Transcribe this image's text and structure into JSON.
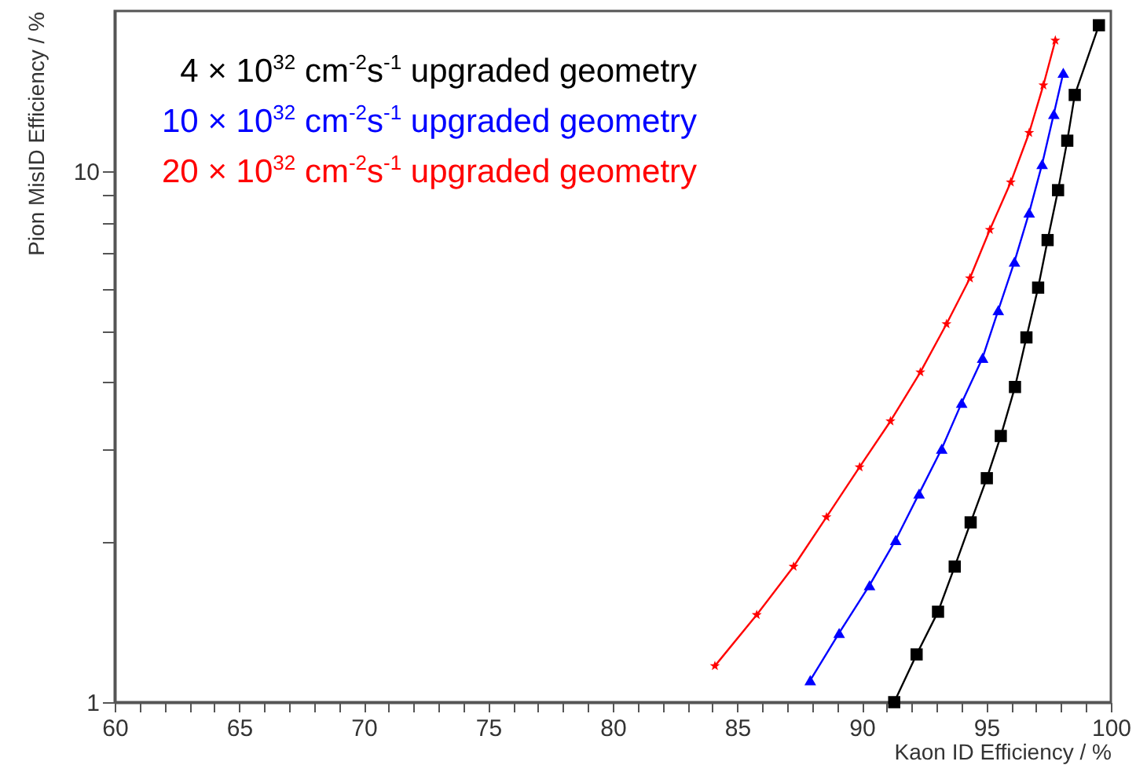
{
  "chart_data": {
    "type": "line",
    "xlabel": "Kaon ID Efficiency / %",
    "ylabel": "Pion MisID Efficiency / %",
    "xlim": [
      60,
      100
    ],
    "ylim": [
      1,
      20
    ],
    "log": "y",
    "legend": "top left",
    "xticks": [
      60,
      {
        "value": 61,
        "label": null
      },
      {
        "value": 62,
        "label": null
      },
      {
        "value": 63,
        "label": null
      },
      {
        "value": 64,
        "label": null
      },
      65,
      {
        "value": 66,
        "label": null
      },
      {
        "value": 67,
        "label": null
      },
      {
        "value": 68,
        "label": null
      },
      {
        "value": 69,
        "label": null
      },
      70,
      {
        "value": 71,
        "label": null
      },
      {
        "value": 72,
        "label": null
      },
      {
        "value": 73,
        "label": null
      },
      {
        "value": 74,
        "label": null
      },
      75,
      {
        "value": 76,
        "label": null
      },
      {
        "value": 77,
        "label": null
      },
      {
        "value": 78,
        "label": null
      },
      {
        "value": 79,
        "label": null
      },
      80,
      {
        "value": 81,
        "label": null
      },
      {
        "value": 82,
        "label": null
      },
      {
        "value": 83,
        "label": null
      },
      {
        "value": 84,
        "label": null
      },
      85,
      {
        "value": 86,
        "label": null
      },
      {
        "value": 87,
        "label": null
      },
      {
        "value": 88,
        "label": null
      },
      {
        "value": 89,
        "label": null
      },
      90,
      {
        "value": 91,
        "label": null
      },
      {
        "value": 92,
        "label": null
      },
      {
        "value": 93,
        "label": null
      },
      {
        "value": 94,
        "label": null
      },
      95,
      {
        "value": 96,
        "label": null
      },
      {
        "value": 97,
        "label": null
      },
      {
        "value": 98,
        "label": null
      },
      {
        "value": 99,
        "label": null
      },
      100
    ],
    "yticks": [
      1,
      {
        "value": 2,
        "label": null
      },
      {
        "value": 3,
        "label": null
      },
      {
        "value": 4,
        "label": null
      },
      {
        "value": 5,
        "label": null
      },
      {
        "value": 6,
        "label": null
      },
      {
        "value": 7,
        "label": null
      },
      {
        "value": 8,
        "label": null
      },
      {
        "value": 9,
        "label": null
      },
      10
    ],
    "series": [
      {
        "name": "4 × 10$^{32}$ cm$^{-2}$s$^{-1}$ upgraded geometry",
        "color": "#000000",
        "marker": "square",
        "x": [
          91.3,
          92.2,
          93.06,
          93.73,
          94.37,
          95.02,
          95.58,
          96.15,
          96.61,
          97.08,
          97.46,
          97.88,
          98.25,
          98.55,
          99.52
        ],
        "values": [
          1.0,
          1.23,
          1.48,
          1.8,
          2.18,
          2.64,
          3.17,
          3.92,
          4.86,
          6.03,
          7.41,
          9.2,
          11.4,
          13.9,
          18.8
        ]
      },
      {
        "name": "10 × 10$^{32}$ cm$^{-2}$s$^{-1}$ upgraded geometry",
        "color": "#0000ff",
        "marker": "triangle",
        "x": [
          87.93,
          89.09,
          90.31,
          91.36,
          92.3,
          93.21,
          94.01,
          94.85,
          95.48,
          96.13,
          96.72,
          97.24,
          97.71,
          98.09
        ],
        "values": [
          1.1,
          1.35,
          1.66,
          2.02,
          2.47,
          3.0,
          3.66,
          4.45,
          5.47,
          6.75,
          8.35,
          10.3,
          12.8,
          15.3
        ]
      },
      {
        "name": "20 × 10$^{32}$ cm$^{-2}$s$^{-1}$ upgraded geometry",
        "color": "#ff0000",
        "marker": "star",
        "x": [
          84.1,
          85.78,
          87.26,
          88.58,
          89.91,
          91.15,
          92.35,
          93.4,
          94.34,
          95.14,
          95.98,
          96.72,
          97.29,
          97.77
        ],
        "values": [
          1.17,
          1.46,
          1.8,
          2.23,
          2.77,
          3.38,
          4.18,
          5.15,
          6.28,
          7.75,
          9.52,
          11.8,
          14.5,
          17.6
        ]
      }
    ]
  }
}
